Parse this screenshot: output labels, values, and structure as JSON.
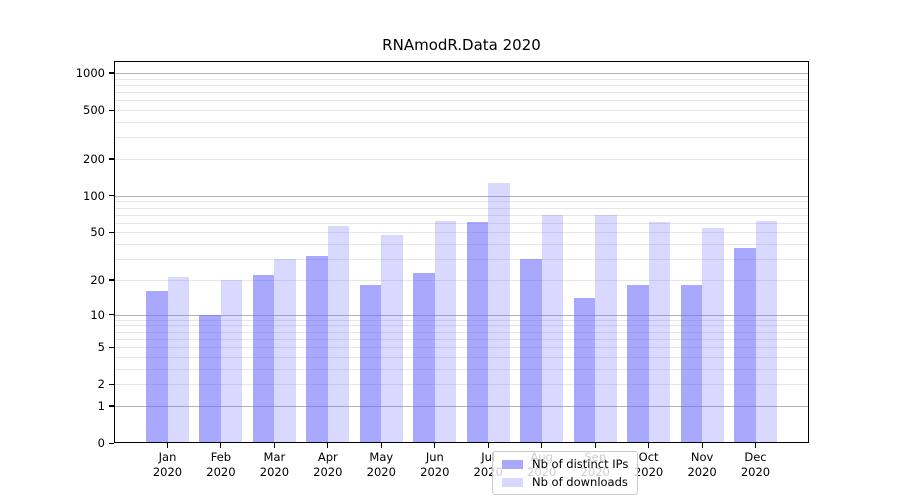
{
  "chart_data": {
    "type": "bar",
    "title": "RNAmodR.Data 2020",
    "categories": [
      "Jan",
      "Feb",
      "Mar",
      "Apr",
      "May",
      "Jun",
      "Jul",
      "Aug",
      "Sep",
      "Oct",
      "Nov",
      "Dec"
    ],
    "x_year": "2020",
    "series": [
      {
        "name": "Nb of distinct IPs",
        "color": "rgba(102,102,255,0.57)",
        "color_hex": "#A9A9FC",
        "values": [
          16,
          10,
          22,
          32,
          18,
          23,
          61,
          30,
          14,
          18,
          18,
          37
        ]
      },
      {
        "name": "Nb of downloads",
        "color": "rgba(102,102,255,0.25)",
        "color_hex": "#DADAFC",
        "values": [
          21,
          20,
          30,
          57,
          48,
          62,
          128,
          70,
          70,
          61,
          54,
          62
        ]
      }
    ],
    "y_ticks": [
      0,
      1,
      2,
      5,
      10,
      20,
      50,
      100,
      200,
      500,
      1000
    ],
    "y_minor_gridlines": [
      3,
      4,
      6,
      7,
      8,
      9,
      30,
      40,
      60,
      70,
      80,
      90,
      300,
      400,
      600,
      700,
      800,
      900
    ],
    "y_scale": "log1p",
    "ylim": [
      0,
      1250
    ],
    "xlabel": "",
    "ylabel": "",
    "grid": true,
    "grid_major_color": "#b3b3b3",
    "grid_minor_color": "#e6e6e6",
    "legend_position": "lower center"
  }
}
